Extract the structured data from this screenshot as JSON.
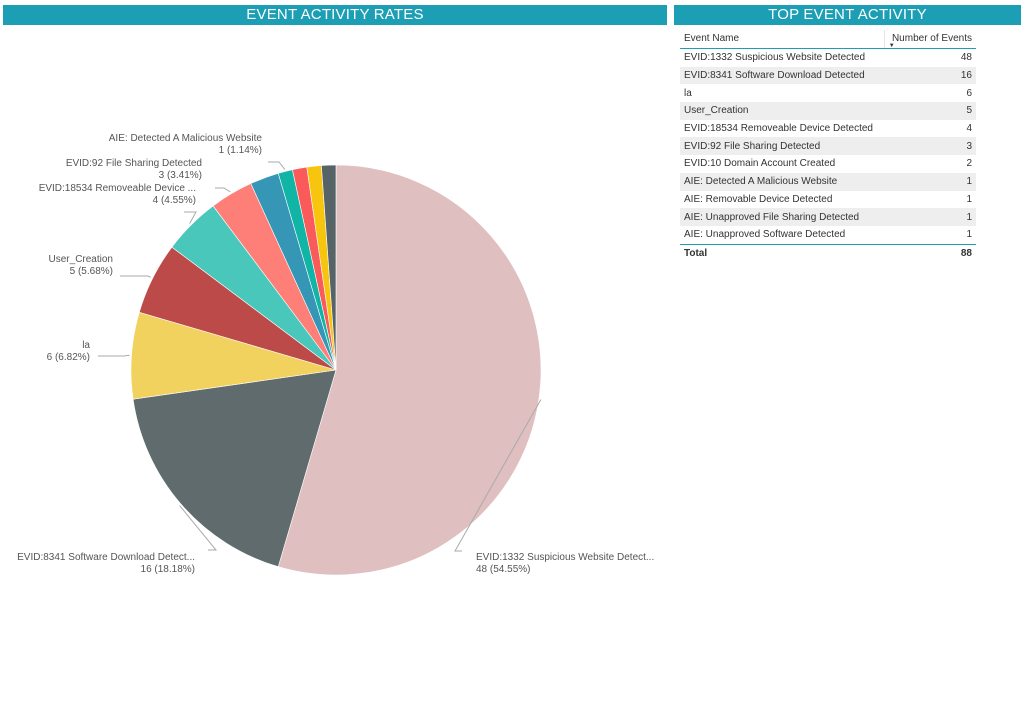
{
  "headers": {
    "left_title": "EVENT ACTIVITY RATES",
    "right_title": "TOP EVENT ACTIVITY"
  },
  "chart_data": {
    "type": "pie",
    "title": "EVENT ACTIVITY RATES",
    "slices": [
      {
        "label": "EVID:1332 Suspicious Website Detect...",
        "full_name": "EVID:1332 Suspicious Website Detected",
        "value": 48,
        "percent": "54.55%",
        "color": "#dfbfbf"
      },
      {
        "label": "EVID:8341 Software Download Detect...",
        "full_name": "EVID:8341 Software Download Detected",
        "value": 16,
        "percent": "18.18%",
        "color": "#5f6b6d"
      },
      {
        "label": "la",
        "full_name": "la",
        "value": 6,
        "percent": "6.82%",
        "color": "#f2d25e"
      },
      {
        "label": "User_Creation",
        "full_name": "User_Creation",
        "value": 5,
        "percent": "5.68%",
        "color": "#bb4a48"
      },
      {
        "label": "EVID:18534 Removeable Device ...",
        "full_name": "EVID:18534 Removeable Device Detected",
        "value": 4,
        "percent": "4.55%",
        "color": "#4ac7bb"
      },
      {
        "label": "EVID:92 File Sharing Detected",
        "full_name": "EVID:92 File Sharing Detected",
        "value": 3,
        "percent": "3.41%",
        "color": "#fd7f78"
      },
      {
        "label": "",
        "full_name": "EVID:10 Domain Account Created",
        "value": 2,
        "percent": "",
        "color": "#3596b5"
      },
      {
        "label": "AIE: Detected A Malicious Website",
        "full_name": "AIE: Detected A Malicious Website",
        "value": 1,
        "percent": "1.14%",
        "color": "#10b5a5"
      },
      {
        "label": "",
        "full_name": "AIE: Removable Device Detected",
        "value": 1,
        "percent": "",
        "color": "#fb5a5a"
      },
      {
        "label": "",
        "full_name": "AIE: Unapproved File Sharing Detected",
        "value": 1,
        "percent": "",
        "color": "#f7c40e"
      },
      {
        "label": "",
        "full_name": "AIE: Unapproved Software Detected",
        "value": 1,
        "percent": "",
        "color": "#566468"
      }
    ]
  },
  "table": {
    "columns": [
      "Event Name",
      "Number of Events"
    ],
    "rows": [
      [
        "EVID:1332 Suspicious Website Detected",
        "48"
      ],
      [
        "EVID:8341 Software Download Detected",
        "16"
      ],
      [
        "la",
        "6"
      ],
      [
        "User_Creation",
        "5"
      ],
      [
        "EVID:18534 Removeable Device Detected",
        "4"
      ],
      [
        "EVID:92 File Sharing Detected",
        "3"
      ],
      [
        "EVID:10 Domain Account Created",
        "2"
      ],
      [
        "AIE: Detected A Malicious Website",
        "1"
      ],
      [
        "AIE: Removable Device Detected",
        "1"
      ],
      [
        "AIE: Unapproved File Sharing Detected",
        "1"
      ],
      [
        "AIE: Unapproved Software Detected",
        "1"
      ]
    ],
    "total_label": "Total",
    "total_value": "88"
  }
}
